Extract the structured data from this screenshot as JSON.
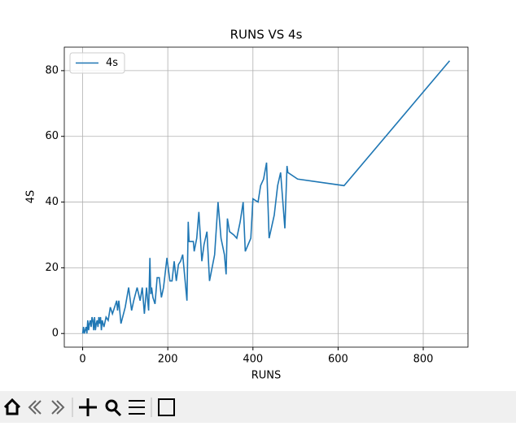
{
  "chart_data": {
    "type": "line",
    "title": "RUNS VS 4s",
    "x_label": "RUNS",
    "y_label": "4S",
    "x": [
      0,
      2,
      4,
      6,
      8,
      10,
      12,
      14,
      16,
      18,
      20,
      22,
      24,
      26,
      28,
      30,
      32,
      34,
      36,
      38,
      40,
      42,
      44,
      46,
      48,
      50,
      55,
      60,
      65,
      70,
      75,
      80,
      82,
      85,
      90,
      100,
      108,
      115,
      120,
      128,
      135,
      140,
      145,
      150,
      155,
      158,
      160,
      162,
      165,
      170,
      175,
      180,
      185,
      190,
      198,
      205,
      210,
      215,
      220,
      225,
      230,
      235,
      245,
      248,
      250,
      260,
      262,
      268,
      273,
      280,
      285,
      292,
      298,
      310,
      318,
      325,
      333,
      337,
      340,
      345,
      355,
      362,
      370,
      377,
      382,
      395,
      400,
      412,
      418,
      425,
      432,
      438,
      450,
      458,
      465,
      475,
      480,
      482,
      505,
      614,
      862
    ],
    "series": [
      {
        "name": "4s",
        "color": "#1f77b4",
        "values": [
          0,
          2,
          0,
          1,
          2,
          0,
          4,
          1,
          3,
          4,
          2,
          5,
          4,
          1,
          5,
          1,
          3,
          4,
          2,
          5,
          3,
          5,
          1,
          4,
          3,
          2,
          5,
          4,
          8,
          6,
          8,
          10,
          7,
          10,
          3,
          8,
          14,
          7,
          10,
          14,
          10,
          14,
          6,
          14,
          7,
          23,
          12,
          14,
          11,
          9,
          17,
          17,
          11,
          14,
          23,
          16,
          16,
          22,
          16,
          21,
          22,
          24,
          10,
          34,
          28,
          28,
          25,
          29,
          37,
          22,
          27,
          31,
          16,
          24,
          40,
          29,
          24,
          18,
          35,
          31,
          30,
          29,
          34,
          40,
          25,
          29,
          41,
          40,
          45,
          47,
          52,
          29,
          36,
          45,
          49,
          32,
          51,
          49,
          47,
          45,
          83
        ]
      }
    ],
    "xlim": [
      -43.1,
      905.1
    ],
    "ylim": [
      -4.15,
      87.15
    ],
    "xticks": [
      0,
      200,
      400,
      600,
      800
    ],
    "yticks": [
      0,
      20,
      40,
      60,
      80
    ],
    "grid": true,
    "legend": "upper left"
  }
}
